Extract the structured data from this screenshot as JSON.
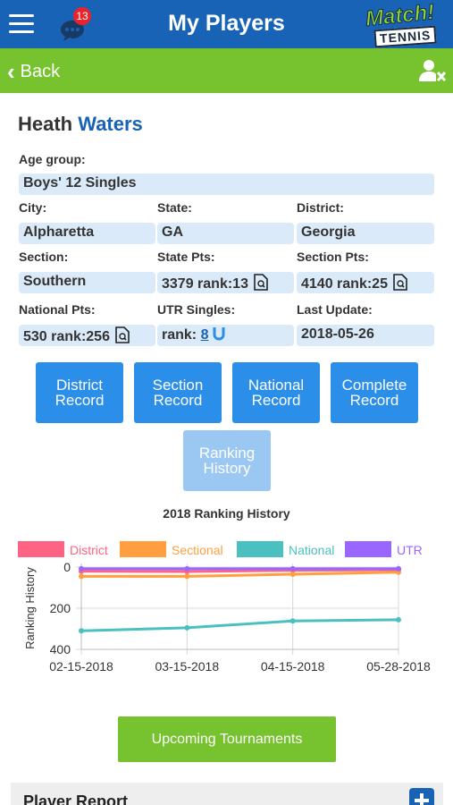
{
  "header": {
    "title": "My Players",
    "chat_badge": "13",
    "logo_line1": "Match!",
    "logo_line2": "TENNIS"
  },
  "nav": {
    "back_label": "Back"
  },
  "player": {
    "first_name": "Heath",
    "last_name": "Waters"
  },
  "fields": {
    "age_group": {
      "label": "Age group:",
      "value": "Boys' 12 Singles"
    },
    "city": {
      "label": "City:",
      "value": "Alpharetta"
    },
    "state": {
      "label": "State:",
      "value": "GA"
    },
    "district": {
      "label": "District:",
      "value": "Georgia"
    },
    "section": {
      "label": "Section:",
      "value": "Southern"
    },
    "state_pts": {
      "label": "State Pts:",
      "value": "3379 rank:13"
    },
    "section_pts": {
      "label": "Section Pts:",
      "value": "4140 rank:25"
    },
    "national_pts": {
      "label": "National Pts:",
      "value": "530 rank:256"
    },
    "utr_singles": {
      "label": "UTR Singles:",
      "prefix": "rank:",
      "rank": "8"
    },
    "last_update": {
      "label": "Last Update:",
      "value": "2018-05-26"
    }
  },
  "buttons": {
    "district_record": [
      "District",
      "Record"
    ],
    "section_record": [
      "Section",
      "Record"
    ],
    "national_record": [
      "National",
      "Record"
    ],
    "complete_record": [
      "Complete",
      "Record"
    ],
    "ranking_history": [
      "Ranking",
      "History"
    ],
    "upcoming": "Upcoming Tournaments"
  },
  "chart_data": {
    "type": "line",
    "title": "2018 Ranking History",
    "ylabel": "Ranking History",
    "xlabel": "",
    "x": [
      "02-15-2018",
      "03-15-2018",
      "04-15-2018",
      "05-28-2018"
    ],
    "ylim": [
      400,
      0
    ],
    "yticks": [
      0,
      200,
      400
    ],
    "y_reversed": true,
    "grid": true,
    "legend_position": "top",
    "series": [
      {
        "name": "District",
        "color": "#ff6384",
        "values": [
          20,
          22,
          16,
          13
        ]
      },
      {
        "name": "Sectional",
        "color": "#ff9f40",
        "values": [
          45,
          45,
          35,
          25
        ]
      },
      {
        "name": "National",
        "color": "#4bc0c0",
        "values": [
          310,
          295,
          262,
          256
        ]
      },
      {
        "name": "UTR",
        "color": "#9966ff",
        "values": [
          8,
          8,
          8,
          8
        ]
      }
    ]
  },
  "report": {
    "title": "Player Report"
  }
}
